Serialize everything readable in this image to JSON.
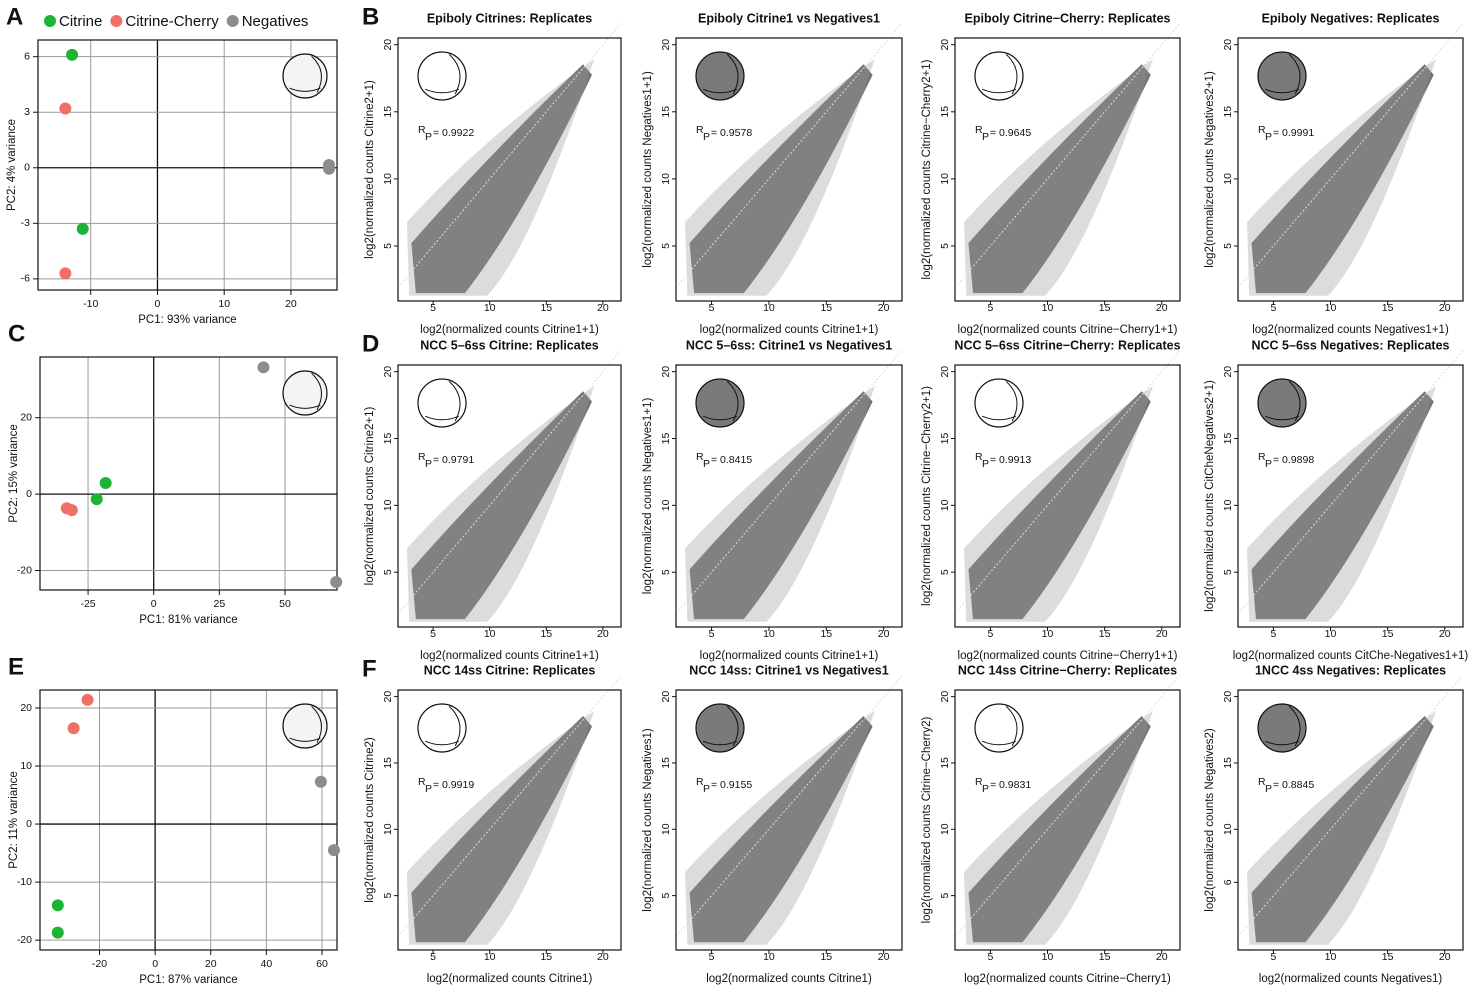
{
  "chart_data": [
    {
      "type": "scatter",
      "panel": "A",
      "xlabel": "PC1: 93% variance",
      "ylabel": "PC2: 4% variance",
      "xlim": [
        -17.9,
        26.9
      ],
      "ylim": [
        -6.6,
        6.9
      ],
      "xticks": [
        -10,
        0,
        10,
        20
      ],
      "yticks": [
        -6,
        -3,
        0,
        3,
        6
      ],
      "grid": true,
      "legend": "top",
      "series": [
        {
          "name": "Citrine",
          "color": "#1db334",
          "x": [
            -12.8,
            -11.2
          ],
          "values": [
            6.1,
            -3.3
          ]
        },
        {
          "name": "Citrine-Cherry",
          "color": "#f07068",
          "x": [
            -13.8,
            -13.8
          ],
          "values": [
            3.2,
            -5.7
          ]
        },
        {
          "name": "Negatives",
          "color": "#8c8c8c",
          "x": [
            25.7,
            25.7
          ],
          "values": [
            0.15,
            -0.05
          ]
        }
      ]
    },
    {
      "type": "density",
      "panel": "B",
      "title": "Epiboly Citrines: Replicates",
      "xlabel": "log2(normalized counts Citrine1+1)",
      "ylabel": "log2(normalized counts Citrine2+1)",
      "xlim": [
        1.9,
        21.6
      ],
      "ylim": [
        0.9,
        20.5
      ],
      "xticks": [
        5,
        10,
        15,
        20
      ],
      "yticks": [
        5,
        10,
        15,
        20
      ],
      "r_symbol": "R",
      "r_subscript": "P",
      "r_text": "= 0.9922"
    },
    {
      "type": "density",
      "title": "Epiboly Citrine1 vs Negatives1",
      "xlabel": "log2(normalized counts Citrine1+1)",
      "ylabel": "log2(normalized counts Negatives1+1)",
      "xlim": [
        1.9,
        21.6
      ],
      "ylim": [
        0.9,
        20.5
      ],
      "xticks": [
        5,
        10,
        15,
        20
      ],
      "yticks": [
        5,
        10,
        15,
        20
      ],
      "r_symbol": "R",
      "r_subscript": "P",
      "r_text": "= 0.9578"
    },
    {
      "type": "density",
      "title": "Epiboly Citrine−Cherry: Replicates",
      "xlabel": "log2(normalized counts Citrine−Cherry1+1)",
      "ylabel": "log2(normalized counts Citrine−Cherry2+1)",
      "xlim": [
        1.9,
        21.6
      ],
      "ylim": [
        0.9,
        20.5
      ],
      "xticks": [
        5,
        10,
        15,
        20
      ],
      "yticks": [
        5,
        10,
        15,
        20
      ],
      "r_symbol": "R",
      "r_subscript": "P",
      "r_text": "= 0.9645"
    },
    {
      "type": "density",
      "title": "Epiboly Negatives: Replicates",
      "xlabel": "log2(normalized counts Negatives1+1)",
      "ylabel": "log2(normalized counts Negatives2+1)",
      "xlim": [
        1.9,
        21.6
      ],
      "ylim": [
        0.9,
        20.5
      ],
      "xticks": [
        5,
        10,
        15,
        20
      ],
      "yticks": [
        5,
        10,
        15,
        20
      ],
      "r_symbol": "R",
      "r_subscript": "P",
      "r_text": "= 0.9991"
    },
    {
      "type": "scatter",
      "panel": "C",
      "xlabel": "PC1: 81% variance",
      "ylabel": "PC2: 15% variance",
      "xlim": [
        -43.3,
        69.8
      ],
      "ylim": [
        -25.1,
        35.9
      ],
      "xticks": [
        -25,
        0,
        25,
        50
      ],
      "yticks": [
        -20,
        0,
        20
      ],
      "grid": true,
      "series": [
        {
          "color": "#1db334",
          "x": [
            -18.3,
            -21.7
          ],
          "values": [
            2.9,
            -1.3
          ]
        },
        {
          "color": "#f07068",
          "x": [
            -33.1,
            -31.2
          ],
          "values": [
            -3.7,
            -4.2
          ]
        },
        {
          "color": "#8c8c8c",
          "x": [
            41.8,
            69.5
          ],
          "values": [
            33.2,
            -23
          ]
        }
      ]
    },
    {
      "type": "density",
      "panel": "D",
      "title": "NCC 5–6ss Citrine: Replicates",
      "xlabel": "log2(normalized counts Citrine1+1)",
      "ylabel": "log2(normalized counts Citrine2+1)",
      "xlim": [
        1.9,
        21.6
      ],
      "ylim": [
        0.9,
        20.5
      ],
      "xticks": [
        5,
        10,
        15,
        20
      ],
      "yticks": [
        5,
        10,
        15,
        20
      ],
      "r_symbol": "R",
      "r_subscript": "P",
      "r_text": "= 0.9791"
    },
    {
      "type": "density",
      "title": "NCC 5–6ss: Citrine1 vs Negatives1",
      "xlabel": "log2(normalized counts Citrine1+1)",
      "ylabel": "log2(normalized counts Negatives1+1)",
      "xlim": [
        1.9,
        21.6
      ],
      "ylim": [
        0.9,
        20.5
      ],
      "xticks": [
        5,
        10,
        15,
        20
      ],
      "yticks": [
        5,
        10,
        15,
        20
      ],
      "r_symbol": "R",
      "r_subscript": "P",
      "r_text": "= 0.8415"
    },
    {
      "type": "density",
      "title": "NCC 5–6ss Citrine−Cherry: Replicates",
      "xlabel": "log2(normalized counts Citrine−Cherry1+1)",
      "ylabel": "log2(normalized counts Citrine−Cherry2+1)",
      "xlim": [
        1.9,
        21.6
      ],
      "ylim": [
        0.9,
        20.5
      ],
      "xticks": [
        5,
        10,
        15,
        20
      ],
      "yticks": [
        5,
        10,
        15,
        20
      ],
      "r_symbol": "R",
      "r_subscript": "P",
      "r_text": "= 0.9913"
    },
    {
      "type": "density",
      "title": "NCC 5–6ss Negatives: Replicates",
      "xlabel": "log2(normalized counts CitChe-Negatives1+1)",
      "ylabel": "log2(normalized counts CitCheNegatives2+1)",
      "xlim": [
        1.9,
        21.6
      ],
      "ylim": [
        0.9,
        20.5
      ],
      "xticks": [
        5,
        10,
        15,
        20
      ],
      "yticks": [
        5,
        10,
        15,
        20
      ],
      "r_symbol": "R",
      "r_subscript": "P",
      "r_text": "= 0.9898"
    },
    {
      "type": "scatter",
      "panel": "E",
      "xlabel": "PC1: 87% variance",
      "ylabel": "PC2: 11% variance",
      "xlim": [
        -41.4,
        65.4
      ],
      "ylim": [
        -21.7,
        23.1
      ],
      "xticks": [
        -20,
        0,
        20,
        40,
        60
      ],
      "yticks": [
        -20,
        -10,
        0,
        10,
        20
      ],
      "grid": true,
      "series": [
        {
          "color": "#1db334",
          "x": [
            -35,
            -35
          ],
          "values": [
            -14,
            -18.7
          ]
        },
        {
          "color": "#f07068",
          "x": [
            -24.3,
            -29.3
          ],
          "values": [
            21.4,
            16.5
          ]
        },
        {
          "color": "#8c8c8c",
          "x": [
            59.6,
            64.3
          ],
          "values": [
            7.3,
            -4.5
          ]
        }
      ]
    },
    {
      "type": "density",
      "panel": "F",
      "title": "NCC 14ss Citrine: Replicates",
      "xlabel": "log2(normalized counts Citrine1)",
      "ylabel": "log2(normalized counts Citrine2)",
      "xlim": [
        1.9,
        21.6
      ],
      "ylim": [
        0.9,
        20.5
      ],
      "xticks": [
        5,
        10,
        15,
        20
      ],
      "yticks": [
        5,
        10,
        15,
        20
      ],
      "r_symbol": "R",
      "r_subscript": "P",
      "r_text": "= 0.9919"
    },
    {
      "type": "density",
      "title": "NCC 14ss:  Citrine1 vs Negatives1",
      "xlabel": "log2(normalized counts Citrine1)",
      "ylabel": "log2(normalized counts Negatives1)",
      "xlim": [
        1.9,
        21.6
      ],
      "ylim": [
        0.9,
        20.5
      ],
      "xticks": [
        5,
        10,
        15,
        20
      ],
      "yticks": [
        5,
        10,
        15,
        20
      ],
      "r_symbol": "R",
      "r_subscript": "P",
      "r_text": "= 0.9155"
    },
    {
      "type": "density",
      "title": "NCC 14ss Citrine−Cherry: Replicates",
      "xlabel": "log2(normalized counts Citrine−Cherry1)",
      "ylabel": "log2(normalized counts Citrine−Cherry2)",
      "xlim": [
        1.9,
        21.6
      ],
      "ylim": [
        0.9,
        20.5
      ],
      "xticks": [
        5,
        10,
        15,
        20
      ],
      "yticks": [
        5,
        10,
        15,
        20
      ],
      "r_symbol": "R",
      "r_subscript": "P",
      "r_text": "= 0.9831"
    },
    {
      "type": "density",
      "title": "1NCC 4ss Negatives: Replicates",
      "xlabel": "log2(normalized counts Negatives1)",
      "ylabel": "log2(normalized counts Negatives2)",
      "xlim": [
        1.9,
        21.6
      ],
      "ylim": [
        0.9,
        20.5
      ],
      "xticks": [
        5,
        10,
        15,
        20
      ],
      "yticks": [
        6,
        10,
        15,
        20
      ],
      "r_symbol": "R",
      "r_subscript": "P",
      "r_text": "= 0.8845"
    }
  ]
}
